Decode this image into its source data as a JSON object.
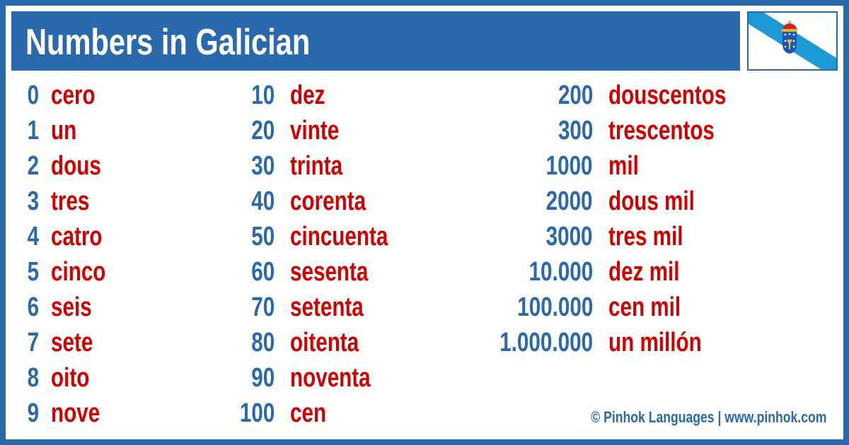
{
  "title": "Numbers in Galician",
  "flag_icon": "galicia-flag",
  "colors": {
    "blue": "#2a69ab",
    "red": "#d10000"
  },
  "columns": [
    [
      [
        "0",
        "cero"
      ],
      [
        "1",
        "un"
      ],
      [
        "2",
        "dous"
      ],
      [
        "3",
        "tres"
      ],
      [
        "4",
        "catro"
      ],
      [
        "5",
        "cinco"
      ],
      [
        "6",
        "seis"
      ],
      [
        "7",
        "sete"
      ],
      [
        "8",
        "oito"
      ],
      [
        "9",
        "nove"
      ]
    ],
    [
      [
        "10",
        "dez"
      ],
      [
        "20",
        "vinte"
      ],
      [
        "30",
        "trinta"
      ],
      [
        "40",
        "corenta"
      ],
      [
        "50",
        "cincuenta"
      ],
      [
        "60",
        "sesenta"
      ],
      [
        "70",
        "setenta"
      ],
      [
        "80",
        "oitenta"
      ],
      [
        "90",
        "noventa"
      ],
      [
        "100",
        "cen"
      ]
    ],
    [
      [
        "200",
        "douscentos"
      ],
      [
        "300",
        "trescentos"
      ],
      [
        "1000",
        "mil"
      ],
      [
        "2000",
        "dous mil"
      ],
      [
        "3000",
        "tres mil"
      ],
      [
        "10.000",
        "dez mil"
      ],
      [
        "100.000",
        "cen mil"
      ],
      [
        "1.000.000",
        "un millón"
      ]
    ]
  ],
  "footer": "© Pinhok Languages | www.pinhok.com"
}
